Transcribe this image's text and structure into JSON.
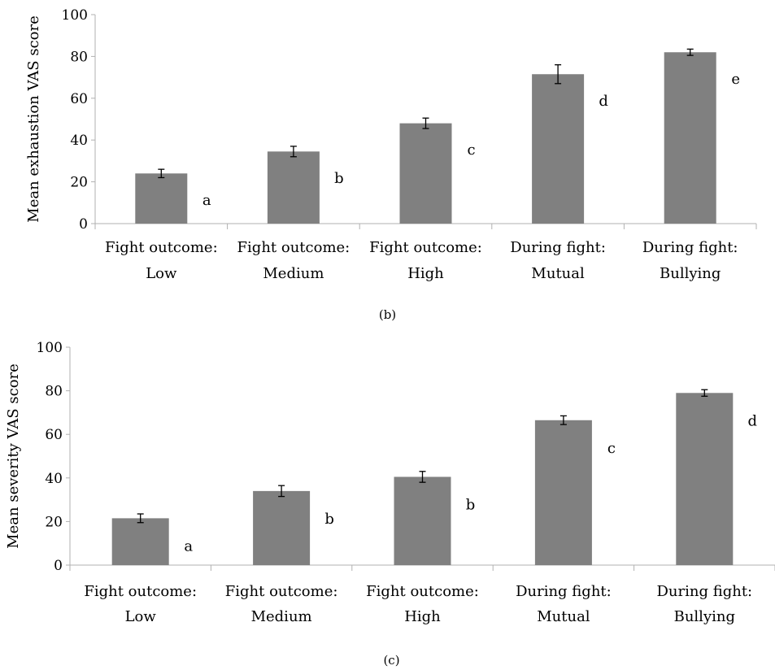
{
  "colors": {
    "bar": "#808080",
    "axis": "#b0b0b0",
    "error": "#000000"
  },
  "chart_data": [
    {
      "type": "bar",
      "panel": "(b)",
      "ylabel": "Mean exhaustion VAS score",
      "xlabel": "",
      "ylim": [
        0,
        100
      ],
      "yticks": [
        0,
        20,
        40,
        60,
        80,
        100
      ],
      "grid": false,
      "categories": [
        [
          "Fight outcome:",
          "Low"
        ],
        [
          "Fight outcome:",
          "Medium"
        ],
        [
          "Fight outcome:",
          "High"
        ],
        [
          "During fight:",
          "Mutual"
        ],
        [
          "During fight:",
          "Bullying"
        ]
      ],
      "values": [
        24,
        34.5,
        48,
        71.5,
        82
      ],
      "errors": [
        2,
        2.5,
        2.5,
        4.5,
        1.5
      ],
      "significance_labels": [
        "a",
        "b",
        "c",
        "d",
        "e"
      ]
    },
    {
      "type": "bar",
      "panel": "(c)",
      "ylabel": "Mean severity VAS score",
      "xlabel": "",
      "ylim": [
        0,
        100
      ],
      "yticks": [
        0,
        20,
        40,
        60,
        80,
        100
      ],
      "grid": false,
      "categories": [
        [
          "Fight outcome:",
          "Low"
        ],
        [
          "Fight outcome:",
          "Medium"
        ],
        [
          "Fight outcome:",
          "High"
        ],
        [
          "During fight:",
          "Mutual"
        ],
        [
          "During fight:",
          "Bullying"
        ]
      ],
      "values": [
        21.5,
        34,
        40.5,
        66.5,
        79
      ],
      "errors": [
        2,
        2.5,
        2.5,
        2,
        1.5
      ],
      "significance_labels": [
        "a",
        "b",
        "b",
        "c",
        "d"
      ]
    }
  ]
}
